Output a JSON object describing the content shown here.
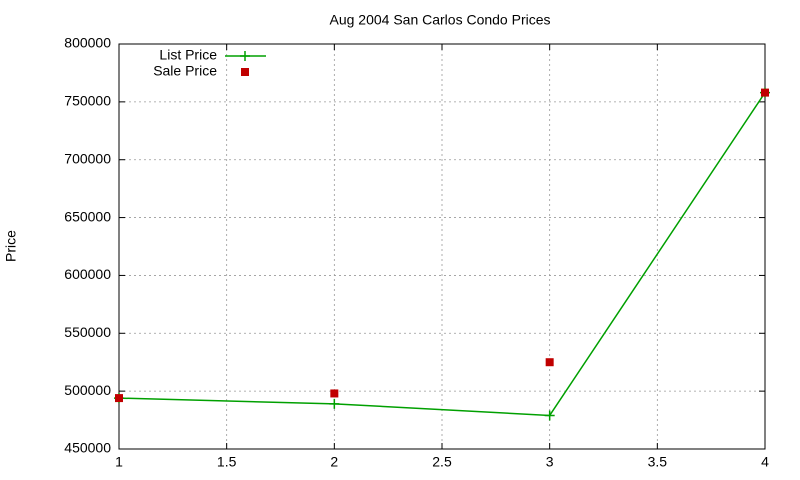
{
  "chart_data": {
    "type": "line",
    "title": "Aug 2004 San Carlos Condo Prices",
    "y_label": "Price",
    "x": [
      1,
      2,
      3,
      4
    ],
    "series": [
      {
        "name": "List Price",
        "color": "#00a000",
        "style": "linespoints",
        "values": [
          494000,
          489000,
          479000,
          758000
        ]
      },
      {
        "name": "Sale Price",
        "color": "#c00000",
        "style": "points",
        "values": [
          494000,
          498000,
          525000,
          758000
        ]
      }
    ],
    "xlim": [
      1,
      4
    ],
    "xticks": [
      1,
      1.5,
      2,
      2.5,
      3,
      3.5,
      4
    ],
    "ylim": [
      450000,
      800000
    ],
    "yticks": [
      450000,
      500000,
      550000,
      600000,
      650000,
      700000,
      750000,
      800000
    ],
    "grid": true,
    "legend": "top-left"
  }
}
